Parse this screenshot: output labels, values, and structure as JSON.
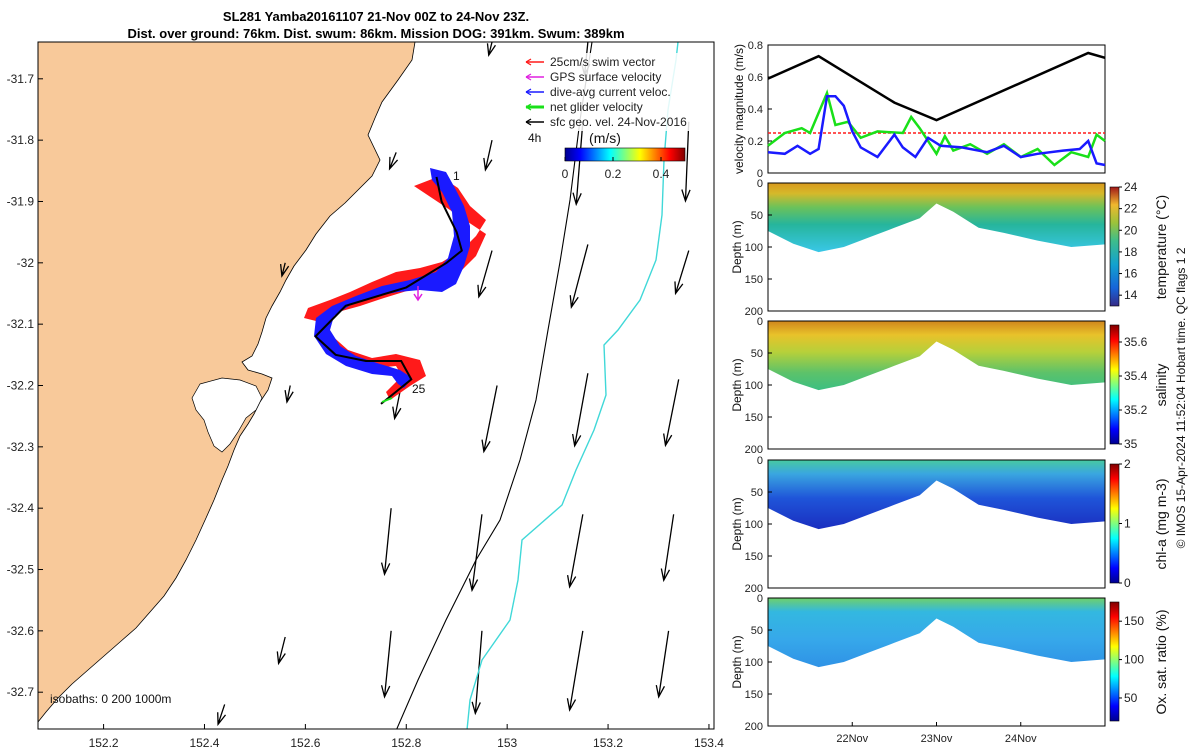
{
  "title_line1": "SL281 Yamba20161107 21-Nov 00Z to 24-Nov 23Z.",
  "title_line2": "Dist. over ground: 76km. Dist. swum: 86km. Mission DOG: 391km. Swum: 389km",
  "colors": {
    "land": "#f8c99a",
    "swim": "#ff1a1a",
    "gps": "#e020e0",
    "dac": "#1a1aff",
    "net": "#19e019",
    "geo": "#000000",
    "iso200": "#000000",
    "iso1000": "#40d8d8"
  },
  "chart_data": [
    {
      "type": "map",
      "name": "glider-track-map",
      "xticks": [
        "152.2",
        "152.4",
        "152.6",
        "152.8",
        "153",
        "153.2",
        "153.4"
      ],
      "xlim": [
        152.07,
        153.41
      ],
      "yticks": [
        "-31.7",
        "-31.8",
        "-31.9",
        "-32",
        "-32.1",
        "-32.2",
        "-32.3",
        "-32.4",
        "-32.5",
        "-32.6",
        "-32.7"
      ],
      "ylim": [
        -32.76,
        -31.64
      ],
      "legend": [
        {
          "label": "25cm/s swim vector",
          "color": "#ff1a1a"
        },
        {
          "label": "GPS surface velocity",
          "color": "#e020e0"
        },
        {
          "label": "dive-avg current veloc.",
          "color": "#1a1aff"
        },
        {
          "label": "net glider velocity",
          "color": "#19e019"
        },
        {
          "label": "sfc geo. vel. 24-Nov-2016",
          "color": "#000000"
        }
      ],
      "interval_label": "4h",
      "colorbar": {
        "label": "(m/s)",
        "ticks": [
          "0",
          "0.2",
          "0.4"
        ],
        "range": [
          0,
          0.5
        ]
      },
      "isobaths_label": "isobaths: 0   200  1000m",
      "track_start_label": "1",
      "track_end_label": "25",
      "track": [
        [
          152.86,
          -31.86
        ],
        [
          152.87,
          -31.9
        ],
        [
          152.9,
          -31.95
        ],
        [
          152.91,
          -31.98
        ],
        [
          152.88,
          -32.0
        ],
        [
          152.8,
          -32.04
        ],
        [
          152.68,
          -32.07
        ],
        [
          152.62,
          -32.12
        ],
        [
          152.66,
          -32.15
        ],
        [
          152.72,
          -32.16
        ],
        [
          152.79,
          -32.16
        ],
        [
          152.81,
          -32.19
        ],
        [
          152.78,
          -32.21
        ],
        [
          152.75,
          -32.23
        ]
      ],
      "geo_vectors": [
        {
          "lon": 152.44,
          "lat": -32.72,
          "u": -0.02,
          "v": -0.06
        },
        {
          "lon": 152.56,
          "lat": -32.61,
          "u": -0.02,
          "v": -0.08
        },
        {
          "lon": 152.77,
          "lat": -32.6,
          "u": -0.02,
          "v": -0.2
        },
        {
          "lon": 152.95,
          "lat": -32.6,
          "u": -0.02,
          "v": -0.25
        },
        {
          "lon": 153.15,
          "lat": -32.6,
          "u": -0.04,
          "v": -0.24
        },
        {
          "lon": 153.32,
          "lat": -32.6,
          "u": -0.03,
          "v": -0.2
        },
        {
          "lon": 152.77,
          "lat": -32.4,
          "u": -0.02,
          "v": -0.2
        },
        {
          "lon": 152.95,
          "lat": -32.41,
          "u": -0.03,
          "v": -0.23
        },
        {
          "lon": 153.15,
          "lat": -32.41,
          "u": -0.04,
          "v": -0.22
        },
        {
          "lon": 153.33,
          "lat": -32.41,
          "u": -0.03,
          "v": -0.2
        },
        {
          "lon": 152.57,
          "lat": -32.2,
          "u": -0.01,
          "v": -0.05
        },
        {
          "lon": 152.79,
          "lat": -32.2,
          "u": -0.02,
          "v": -0.1
        },
        {
          "lon": 152.98,
          "lat": -32.2,
          "u": -0.04,
          "v": -0.2
        },
        {
          "lon": 153.16,
          "lat": -32.18,
          "u": -0.04,
          "v": -0.22
        },
        {
          "lon": 153.34,
          "lat": -32.19,
          "u": -0.04,
          "v": -0.2
        },
        {
          "lon": 152.56,
          "lat": -32.0,
          "u": -0.01,
          "v": -0.04
        },
        {
          "lon": 152.97,
          "lat": -31.98,
          "u": -0.04,
          "v": -0.14
        },
        {
          "lon": 153.16,
          "lat": -31.97,
          "u": -0.05,
          "v": -0.19
        },
        {
          "lon": 153.36,
          "lat": -31.98,
          "u": -0.04,
          "v": -0.13
        },
        {
          "lon": 152.78,
          "lat": -31.82,
          "u": -0.02,
          "v": -0.05
        },
        {
          "lon": 152.97,
          "lat": -31.8,
          "u": -0.02,
          "v": -0.09
        },
        {
          "lon": 153.15,
          "lat": -31.77,
          "u": -0.02,
          "v": -0.25
        },
        {
          "lon": 153.36,
          "lat": -31.77,
          "u": -0.01,
          "v": -0.24
        },
        {
          "lon": 152.97,
          "lat": -31.64,
          "u": -0.01,
          "v": -0.04
        },
        {
          "lon": 153.16,
          "lat": -31.64,
          "u": -0.01,
          "v": -0.1
        }
      ]
    },
    {
      "type": "line",
      "name": "velocity-magnitude",
      "ylabel": "velocity magnitude (m/s)",
      "ylim": [
        0,
        0.8
      ],
      "yticks": [
        "0",
        "0.2",
        "0.4",
        "0.6",
        "0.8"
      ],
      "xlim": [
        21,
        25
      ],
      "series": [
        {
          "name": "sfc geo. vel.",
          "color": "#000000",
          "x": [
            21.0,
            21.6,
            22.5,
            23.0,
            24.8,
            25.0
          ],
          "values": [
            0.59,
            0.73,
            0.44,
            0.33,
            0.75,
            0.72
          ]
        },
        {
          "name": "swim",
          "color": "#ff1a1a",
          "x": [
            21.0,
            25.0
          ],
          "values": [
            0.25,
            0.25
          ]
        },
        {
          "name": "net glider velocity",
          "color": "#19e019",
          "x": [
            21.0,
            21.2,
            21.4,
            21.5,
            21.7,
            21.8,
            21.95,
            22.1,
            22.3,
            22.6,
            22.7,
            22.8,
            23.0,
            23.1,
            23.2,
            23.4,
            23.6,
            23.8,
            24.0,
            24.2,
            24.4,
            24.6,
            24.8,
            24.9,
            25.0
          ],
          "values": [
            0.17,
            0.25,
            0.28,
            0.25,
            0.5,
            0.3,
            0.32,
            0.22,
            0.26,
            0.25,
            0.35,
            0.28,
            0.12,
            0.23,
            0.14,
            0.18,
            0.12,
            0.18,
            0.1,
            0.15,
            0.05,
            0.13,
            0.1,
            0.24,
            0.2
          ]
        },
        {
          "name": "dive-avg current veloc.",
          "color": "#1a1aff",
          "x": [
            21.0,
            21.2,
            21.35,
            21.5,
            21.6,
            21.7,
            21.8,
            21.9,
            22.0,
            22.1,
            22.3,
            22.5,
            22.6,
            22.75,
            22.9,
            23.05,
            23.3,
            23.6,
            23.8,
            24.0,
            24.2,
            24.5,
            24.7,
            24.8,
            24.9,
            25.0
          ],
          "values": [
            0.13,
            0.12,
            0.17,
            0.12,
            0.15,
            0.48,
            0.48,
            0.42,
            0.26,
            0.16,
            0.1,
            0.24,
            0.16,
            0.1,
            0.22,
            0.17,
            0.16,
            0.13,
            0.17,
            0.1,
            0.12,
            0.14,
            0.15,
            0.2,
            0.06,
            0.05
          ]
        }
      ]
    },
    {
      "type": "heatmap",
      "name": "temperature-section",
      "ylabel": "Depth (m)",
      "yticks": [
        "0",
        "50",
        "100",
        "150",
        "200"
      ],
      "ylim": [
        200,
        0
      ],
      "cb_label": "temperature (°C)",
      "cb_ticks": [
        "14",
        "16",
        "18",
        "20",
        "22",
        "24"
      ],
      "cb_range": [
        13,
        24
      ]
    },
    {
      "type": "heatmap",
      "name": "salinity-section",
      "ylabel": "Depth (m)",
      "yticks": [
        "0",
        "50",
        "100",
        "150",
        "200"
      ],
      "ylim": [
        200,
        0
      ],
      "cb_label": "salinity",
      "cb_ticks": [
        "35",
        "35.2",
        "35.4",
        "35.6"
      ],
      "cb_range": [
        35.0,
        35.7
      ]
    },
    {
      "type": "heatmap",
      "name": "chla-section",
      "ylabel": "Depth (m)",
      "yticks": [
        "0",
        "50",
        "100",
        "150",
        "200"
      ],
      "ylim": [
        200,
        0
      ],
      "cb_label": "chl-a (mg m-3)",
      "cb_ticks": [
        "0",
        "1",
        "2"
      ],
      "cb_range": [
        0,
        2
      ]
    },
    {
      "type": "heatmap",
      "name": "oxygen-section",
      "ylabel": "Depth (m)",
      "yticks": [
        "0",
        "50",
        "100",
        "150",
        "200"
      ],
      "ylim": [
        200,
        0
      ],
      "cb_label": "Ox. sat. ratio (%)",
      "cb_ticks": [
        "50",
        "100",
        "150"
      ],
      "cb_range": [
        20,
        175
      ],
      "xticks": [
        "22Nov",
        "23Nov",
        "24Nov"
      ]
    }
  ],
  "footer_note": "© IMOS 15-Apr-2024 11:52:04 Hobart time. QC flags 1  2"
}
